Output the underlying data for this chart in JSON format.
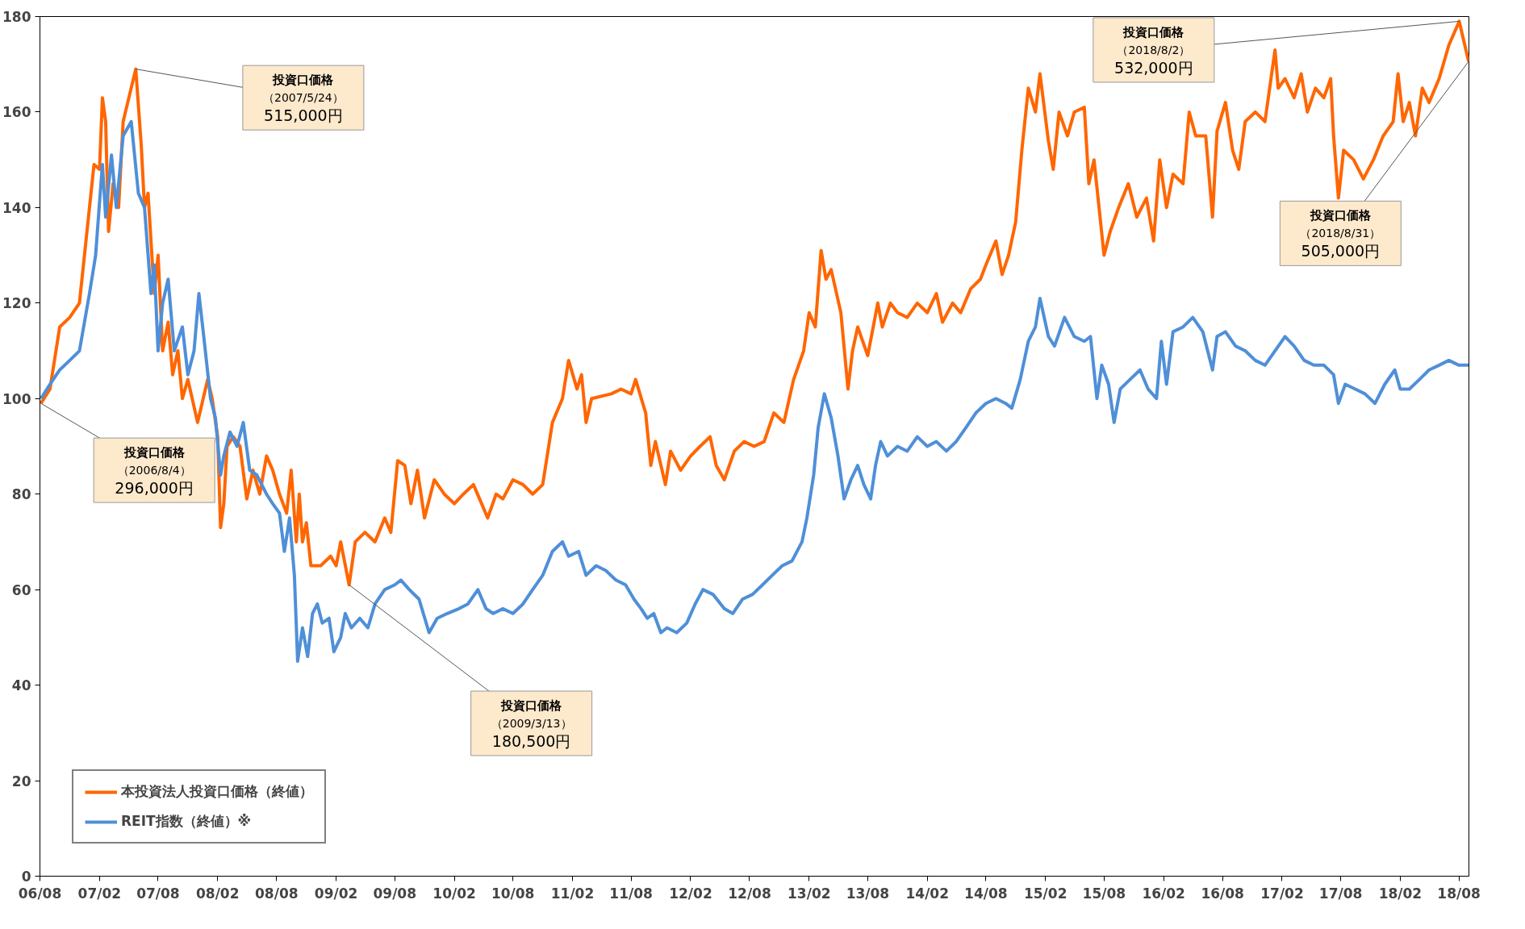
{
  "chart_data": {
    "type": "line",
    "legend": "bottom left",
    "grid": false,
    "marker": "none",
    "line_style": "solid",
    "ylim": [
      0,
      180
    ],
    "yticks": [
      0,
      20,
      40,
      60,
      80,
      100,
      120,
      140,
      160,
      180
    ],
    "xlim": [
      "2006-08-01",
      "2018-09-01"
    ],
    "xticks": [
      {
        "value": "2006-08",
        "label": "06/08"
      },
      {
        "value": "2007-02",
        "label": "07/02"
      },
      {
        "value": "2007-08",
        "label": "07/08"
      },
      {
        "value": "2008-02",
        "label": "08/02"
      },
      {
        "value": "2008-08",
        "label": "08/08"
      },
      {
        "value": "2009-02",
        "label": "09/02"
      },
      {
        "value": "2009-08",
        "label": "09/08"
      },
      {
        "value": "2010-02",
        "label": "10/02"
      },
      {
        "value": "2010-08",
        "label": "10/08"
      },
      {
        "value": "2011-02",
        "label": "11/02"
      },
      {
        "value": "2011-08",
        "label": "11/08"
      },
      {
        "value": "2012-02",
        "label": "12/02"
      },
      {
        "value": "2012-08",
        "label": "12/08"
      },
      {
        "value": "2013-02",
        "label": "13/02"
      },
      {
        "value": "2013-08",
        "label": "13/08"
      },
      {
        "value": "2014-02",
        "label": "14/02"
      },
      {
        "value": "2014-08",
        "label": "14/08"
      },
      {
        "value": "2015-02",
        "label": "15/02"
      },
      {
        "value": "2015-08",
        "label": "15/08"
      },
      {
        "value": "2016-02",
        "label": "16/02"
      },
      {
        "value": "2016-08",
        "label": "16/08"
      },
      {
        "value": "2017-02",
        "label": "17/02"
      },
      {
        "value": "2017-08",
        "label": "17/08"
      },
      {
        "value": "2018-02",
        "label": "18/02"
      },
      {
        "value": "2018-08",
        "label": "18/08"
      }
    ],
    "series": [
      {
        "name": "本投資法人投資口価格（終値）",
        "color": "#ff6600",
        "x": [
          "2006-08-04",
          "2006-09-01",
          "2006-10-01",
          "2006-11-01",
          "2006-12-01",
          "2007-01-15",
          "2007-02-01",
          "2007-02-10",
          "2007-02-20",
          "2007-03-01",
          "2007-03-15",
          "2007-04-01",
          "2007-04-15",
          "2007-05-24",
          "2007-06-10",
          "2007-06-20",
          "2007-07-01",
          "2007-07-20",
          "2007-08-01",
          "2007-08-15",
          "2007-09-01",
          "2007-09-15",
          "2007-10-01",
          "2007-10-15",
          "2007-11-01",
          "2007-12-01",
          "2008-01-01",
          "2008-01-15",
          "2008-02-01",
          "2008-02-10",
          "2008-02-20",
          "2008-03-01",
          "2008-03-20",
          "2008-04-10",
          "2008-05-01",
          "2008-05-20",
          "2008-06-10",
          "2008-07-01",
          "2008-07-20",
          "2008-08-10",
          "2008-09-01",
          "2008-09-15",
          "2008-10-01",
          "2008-10-10",
          "2008-10-20",
          "2008-11-01",
          "2008-11-15",
          "2008-12-15",
          "2009-01-15",
          "2009-02-01",
          "2009-02-15",
          "2009-03-13",
          "2009-04-01",
          "2009-05-01",
          "2009-06-01",
          "2009-07-01",
          "2009-07-20",
          "2009-08-10",
          "2009-09-01",
          "2009-09-20",
          "2009-10-10",
          "2009-11-01",
          "2009-12-01",
          "2010-01-01",
          "2010-02-01",
          "2010-03-01",
          "2010-04-01",
          "2010-04-20",
          "2010-05-15",
          "2010-06-10",
          "2010-07-01",
          "2010-08-01",
          "2010-09-01",
          "2010-10-01",
          "2010-11-01",
          "2010-12-01",
          "2011-01-01",
          "2011-01-20",
          "2011-02-15",
          "2011-03-01",
          "2011-03-15",
          "2011-04-01",
          "2011-06-01",
          "2011-07-01",
          "2011-08-01",
          "2011-08-15",
          "2011-09-15",
          "2011-10-01",
          "2011-10-15",
          "2011-11-15",
          "2011-12-01",
          "2012-01-01",
          "2012-02-01",
          "2012-03-01",
          "2012-04-01",
          "2012-04-20",
          "2012-05-15",
          "2012-06-15",
          "2012-07-15",
          "2012-08-15",
          "2012-09-15",
          "2012-10-15",
          "2012-11-15",
          "2012-12-15",
          "2013-01-15",
          "2013-02-01",
          "2013-02-20",
          "2013-03-10",
          "2013-03-25",
          "2013-04-10",
          "2013-05-10",
          "2013-06-01",
          "2013-06-15",
          "2013-07-01",
          "2013-08-01",
          "2013-09-01",
          "2013-09-15",
          "2013-10-10",
          "2013-11-01",
          "2013-12-01",
          "2014-01-01",
          "2014-02-01",
          "2014-03-01",
          "2014-03-20",
          "2014-04-20",
          "2014-05-15",
          "2014-06-15",
          "2014-07-15",
          "2014-08-01",
          "2014-09-01",
          "2014-09-20",
          "2014-10-10",
          "2014-11-01",
          "2014-11-20",
          "2014-12-10",
          "2015-01-01",
          "2015-01-15",
          "2015-02-10",
          "2015-02-25",
          "2015-03-15",
          "2015-04-10",
          "2015-05-01",
          "2015-06-01",
          "2015-06-15",
          "2015-07-01",
          "2015-08-01",
          "2015-08-20",
          "2015-09-15",
          "2015-10-15",
          "2015-11-10",
          "2015-12-10",
          "2016-01-01",
          "2016-01-20",
          "2016-02-10",
          "2016-03-01",
          "2016-04-01",
          "2016-04-20",
          "2016-05-10",
          "2016-06-10",
          "2016-07-01",
          "2016-07-15",
          "2016-08-10",
          "2016-09-01",
          "2016-09-20",
          "2016-10-10",
          "2016-11-10",
          "2016-12-10",
          "2017-01-10",
          "2017-01-20",
          "2017-02-10",
          "2017-03-10",
          "2017-04-01",
          "2017-04-20",
          "2017-05-15",
          "2017-06-10",
          "2017-07-01",
          "2017-07-10",
          "2017-07-25",
          "2017-08-10",
          "2017-09-10",
          "2017-10-10",
          "2017-11-10",
          "2017-12-10",
          "2018-01-10",
          "2018-01-25",
          "2018-02-10",
          "2018-03-01",
          "2018-03-20",
          "2018-04-10",
          "2018-05-01",
          "2018-06-01",
          "2018-07-01",
          "2018-08-02",
          "2018-08-31"
        ],
        "values": [
          99,
          102,
          115,
          117,
          120,
          149,
          148,
          163,
          158,
          135,
          145,
          140,
          158,
          169,
          153,
          140,
          143,
          122,
          130,
          110,
          116,
          105,
          110,
          100,
          104,
          95,
          104,
          100,
          92,
          73,
          78,
          90,
          92,
          90,
          79,
          85,
          80,
          88,
          85,
          80,
          76,
          85,
          70,
          80,
          70,
          74,
          65,
          65,
          67,
          65,
          70,
          61,
          70,
          72,
          70,
          75,
          72,
          87,
          86,
          78,
          85,
          75,
          83,
          80,
          78,
          80,
          82,
          79,
          75,
          80,
          79,
          83,
          82,
          80,
          82,
          95,
          100,
          108,
          102,
          105,
          95,
          100,
          101,
          102,
          101,
          104,
          97,
          86,
          91,
          82,
          89,
          85,
          88,
          90,
          92,
          86,
          83,
          89,
          91,
          90,
          91,
          97,
          95,
          104,
          110,
          118,
          115,
          131,
          125,
          127,
          118,
          102,
          110,
          115,
          109,
          120,
          115,
          120,
          118,
          117,
          120,
          118,
          122,
          116,
          120,
          118,
          123,
          125,
          128,
          133,
          126,
          130,
          137,
          152,
          165,
          160,
          168,
          154,
          148,
          160,
          155,
          160,
          161,
          145,
          150,
          130,
          135,
          140,
          145,
          138,
          142,
          133,
          150,
          140,
          147,
          145,
          160,
          155,
          155,
          138,
          156,
          162,
          152,
          148,
          158,
          160,
          158,
          173,
          165,
          167,
          163,
          168,
          160,
          165,
          163,
          167,
          155,
          142,
          152,
          150,
          146,
          150,
          155,
          158,
          168,
          158,
          162,
          155,
          165,
          162,
          167,
          174,
          179,
          170.6
        ]
      },
      {
        "name": "REIT指数（終値）※",
        "color": "#4f8fd8",
        "x": [
          "2006-08-04",
          "2006-09-01",
          "2006-10-01",
          "2006-11-01",
          "2006-12-01",
          "2007-01-01",
          "2007-01-20",
          "2007-02-01",
          "2007-02-10",
          "2007-02-20",
          "2007-03-10",
          "2007-03-25",
          "2007-04-15",
          "2007-05-10",
          "2007-06-01",
          "2007-06-20",
          "2007-07-10",
          "2007-07-20",
          "2007-08-01",
          "2007-08-15",
          "2007-09-01",
          "2007-09-20",
          "2007-10-15",
          "2007-11-01",
          "2007-11-20",
          "2007-12-05",
          "2007-12-20",
          "2008-01-10",
          "2008-01-25",
          "2008-02-10",
          "2008-02-20",
          "2008-03-10",
          "2008-04-01",
          "2008-04-20",
          "2008-05-10",
          "2008-06-01",
          "2008-07-01",
          "2008-07-20",
          "2008-08-10",
          "2008-08-25",
          "2008-09-10",
          "2008-09-25",
          "2008-10-05",
          "2008-10-20",
          "2008-11-05",
          "2008-11-20",
          "2008-12-05",
          "2008-12-20",
          "2009-01-10",
          "2009-01-25",
          "2009-02-15",
          "2009-03-01",
          "2009-03-20",
          "2009-04-15",
          "2009-05-10",
          "2009-06-01",
          "2009-07-01",
          "2009-08-01",
          "2009-08-20",
          "2009-09-15",
          "2009-10-15",
          "2009-11-15",
          "2009-12-10",
          "2010-01-10",
          "2010-02-15",
          "2010-03-15",
          "2010-04-15",
          "2010-05-10",
          "2010-06-01",
          "2010-07-01",
          "2010-08-01",
          "2010-09-01",
          "2010-10-01",
          "2010-11-01",
          "2010-12-01",
          "2011-01-01",
          "2011-01-20",
          "2011-02-20",
          "2011-03-15",
          "2011-04-15",
          "2011-05-15",
          "2011-06-15",
          "2011-07-15",
          "2011-08-10",
          "2011-09-01",
          "2011-09-20",
          "2011-10-10",
          "2011-11-01",
          "2011-11-20",
          "2011-12-20",
          "2012-01-20",
          "2012-02-15",
          "2012-03-10",
          "2012-04-10",
          "2012-05-15",
          "2012-06-10",
          "2012-07-10",
          "2012-08-10",
          "2012-09-10",
          "2012-10-10",
          "2012-11-10",
          "2012-12-10",
          "2013-01-10",
          "2013-01-25",
          "2013-02-15",
          "2013-03-01",
          "2013-03-20",
          "2013-04-10",
          "2013-05-01",
          "2013-05-20",
          "2013-06-10",
          "2013-07-01",
          "2013-07-20",
          "2013-08-10",
          "2013-08-25",
          "2013-09-10",
          "2013-10-01",
          "2013-11-01",
          "2013-12-01",
          "2014-01-01",
          "2014-02-01",
          "2014-03-01",
          "2014-04-01",
          "2014-05-01",
          "2014-06-01",
          "2014-07-01",
          "2014-08-01",
          "2014-09-01",
          "2014-10-01",
          "2014-10-20",
          "2014-11-15",
          "2014-12-10",
          "2015-01-01",
          "2015-01-15",
          "2015-02-10",
          "2015-03-01",
          "2015-04-01",
          "2015-05-01",
          "2015-06-01",
          "2015-06-20",
          "2015-07-10",
          "2015-07-25",
          "2015-08-15",
          "2015-09-01",
          "2015-09-20",
          "2015-10-20",
          "2015-11-20",
          "2015-12-15",
          "2016-01-10",
          "2016-01-25",
          "2016-02-10",
          "2016-03-01",
          "2016-04-01",
          "2016-05-01",
          "2016-06-01",
          "2016-07-01",
          "2016-07-15",
          "2016-08-10",
          "2016-09-10",
          "2016-10-10",
          "2016-11-10",
          "2016-12-10",
          "2017-01-10",
          "2017-02-10",
          "2017-03-10",
          "2017-04-10",
          "2017-05-10",
          "2017-06-10",
          "2017-07-10",
          "2017-07-25",
          "2017-08-15",
          "2017-09-15",
          "2017-10-15",
          "2017-11-15",
          "2017-12-15",
          "2018-01-15",
          "2018-02-01",
          "2018-03-01",
          "2018-04-01",
          "2018-05-01",
          "2018-06-01",
          "2018-07-01",
          "2018-08-01",
          "2018-08-31"
        ],
        "values": [
          100,
          103,
          106,
          108,
          110,
          122,
          130,
          141,
          149,
          138,
          151,
          140,
          155,
          158,
          143,
          140,
          122,
          128,
          110,
          120,
          125,
          110,
          115,
          105,
          110,
          122,
          113,
          100,
          96,
          84,
          88,
          93,
          90,
          95,
          85,
          84,
          80,
          78,
          76,
          68,
          75,
          63,
          45,
          52,
          46,
          55,
          57,
          53,
          54,
          47,
          50,
          55,
          52,
          54,
          52,
          57,
          60,
          61,
          62,
          60,
          58,
          51,
          54,
          55,
          56,
          57,
          60,
          56,
          55,
          56,
          55,
          57,
          60,
          63,
          68,
          70,
          67,
          68,
          63,
          65,
          64,
          62,
          61,
          58,
          56,
          54,
          55,
          51,
          52,
          51,
          53,
          57,
          60,
          59,
          56,
          55,
          58,
          59,
          61,
          63,
          65,
          66,
          70,
          75,
          84,
          94,
          101,
          96,
          88,
          79,
          83,
          86,
          82,
          79,
          86,
          91,
          88,
          90,
          89,
          92,
          90,
          91,
          89,
          91,
          94,
          97,
          99,
          100,
          99,
          98,
          104,
          112,
          115,
          121,
          113,
          111,
          117,
          113,
          112,
          113,
          100,
          107,
          103,
          95,
          102,
          104,
          106,
          102,
          100,
          112,
          103,
          114,
          115,
          117,
          114,
          106,
          113,
          114,
          111,
          110,
          108,
          107,
          110,
          113,
          111,
          108,
          107,
          107,
          105,
          99,
          103,
          102,
          101,
          99,
          103,
          106,
          102,
          102,
          104,
          106,
          107,
          108,
          107,
          107
        ]
      }
    ],
    "annotations": [
      {
        "text": "投資口価格",
        "x": "2006-08-04",
        "y": 99
      },
      "（2006/8/4）",
      "296,000円",
      {
        "text": "投資口価格",
        "x": "2007-05-24",
        "y": 169
      },
      "（2007/5/24）",
      "515,000円",
      {
        "text": "投資口価格",
        "x": "2009-03-13",
        "y": 61
      },
      "（2009/3/13）",
      "180,500円",
      {
        "text": "投資口価格",
        "x": "2018-08-02",
        "y": 179
      },
      "（2018/8/2）",
      "532,000円",
      {
        "text": "投資口価格",
        "x": "2018-08-31",
        "y": 170.6
      },
      "（2018/8/31）",
      "505,000円"
    ]
  }
}
